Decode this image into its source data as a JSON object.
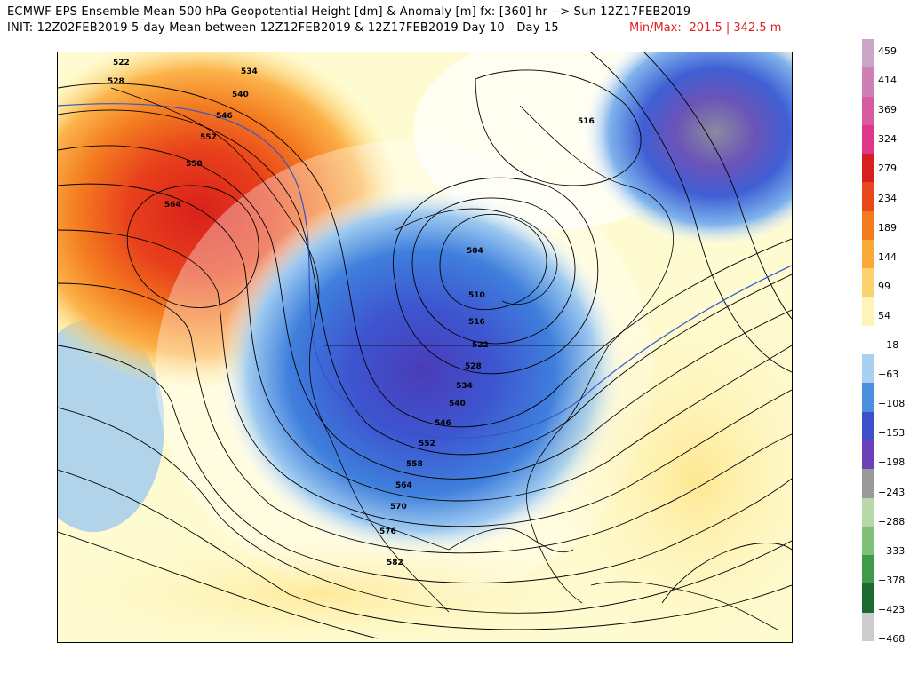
{
  "header": {
    "line1": "ECMWF EPS Ensemble Mean 500 hPa Geopotential Height [dm] & Anomaly [m] fx: [360] hr --> Sun 12Z17FEB2019",
    "line2": "INIT: 12Z02FEB2019 5-day Mean between 12Z12FEB2019 & 12Z17FEB2019   Day 10 - Day 15",
    "maxmin": "Min/Max: -201.5 | 342.5 m"
  },
  "legend": {
    "ticks": [
      "459",
      "414",
      "369",
      "324",
      "279",
      "234",
      "189",
      "144",
      "99",
      "54",
      "−18",
      "−63",
      "−108",
      "−153",
      "−198",
      "−243",
      "−288",
      "−333",
      "−378",
      "−423",
      "−468"
    ],
    "swatches": [
      {
        "color": "#c9a6c7"
      },
      {
        "color": "#d07fb4"
      },
      {
        "color": "#d85aa0"
      },
      {
        "color": "#e0368a"
      },
      {
        "color": "#d81e1e"
      },
      {
        "color": "#e8481a"
      },
      {
        "color": "#f37a1e"
      },
      {
        "color": "#f9a83a"
      },
      {
        "color": "#fcd170"
      },
      {
        "color": "#fff4b8"
      },
      {
        "color": "#ffffff"
      },
      {
        "color": "#a9d0f0"
      },
      {
        "color": "#4a8fe0"
      },
      {
        "color": "#3d4fc9"
      },
      {
        "color": "#6a3fb8"
      },
      {
        "color": "#9a9a9a"
      },
      {
        "color": "#b8d8a8"
      },
      {
        "color": "#7ec07a"
      },
      {
        "color": "#3f9a4a"
      },
      {
        "color": "#1d6a32"
      },
      {
        "color": "#cccccc"
      }
    ]
  },
  "map": {
    "contour_labels": [
      "522",
      "528",
      "534",
      "540",
      "546",
      "552",
      "558",
      "564",
      "516",
      "504",
      "510",
      "516",
      "522",
      "528",
      "534",
      "540",
      "546",
      "552",
      "558",
      "564",
      "570",
      "576",
      "582"
    ],
    "colors": {
      "positive_strong": "#d9201c",
      "positive_mid": "#f47c20",
      "positive_weak": "#fde58a",
      "neutral": "#ffffff",
      "negative_weak": "#9ecaf0",
      "negative_mid": "#3f7fdc",
      "negative_strong": "#4a3cb8",
      "negative_extreme": "#8a8aa0"
    }
  }
}
